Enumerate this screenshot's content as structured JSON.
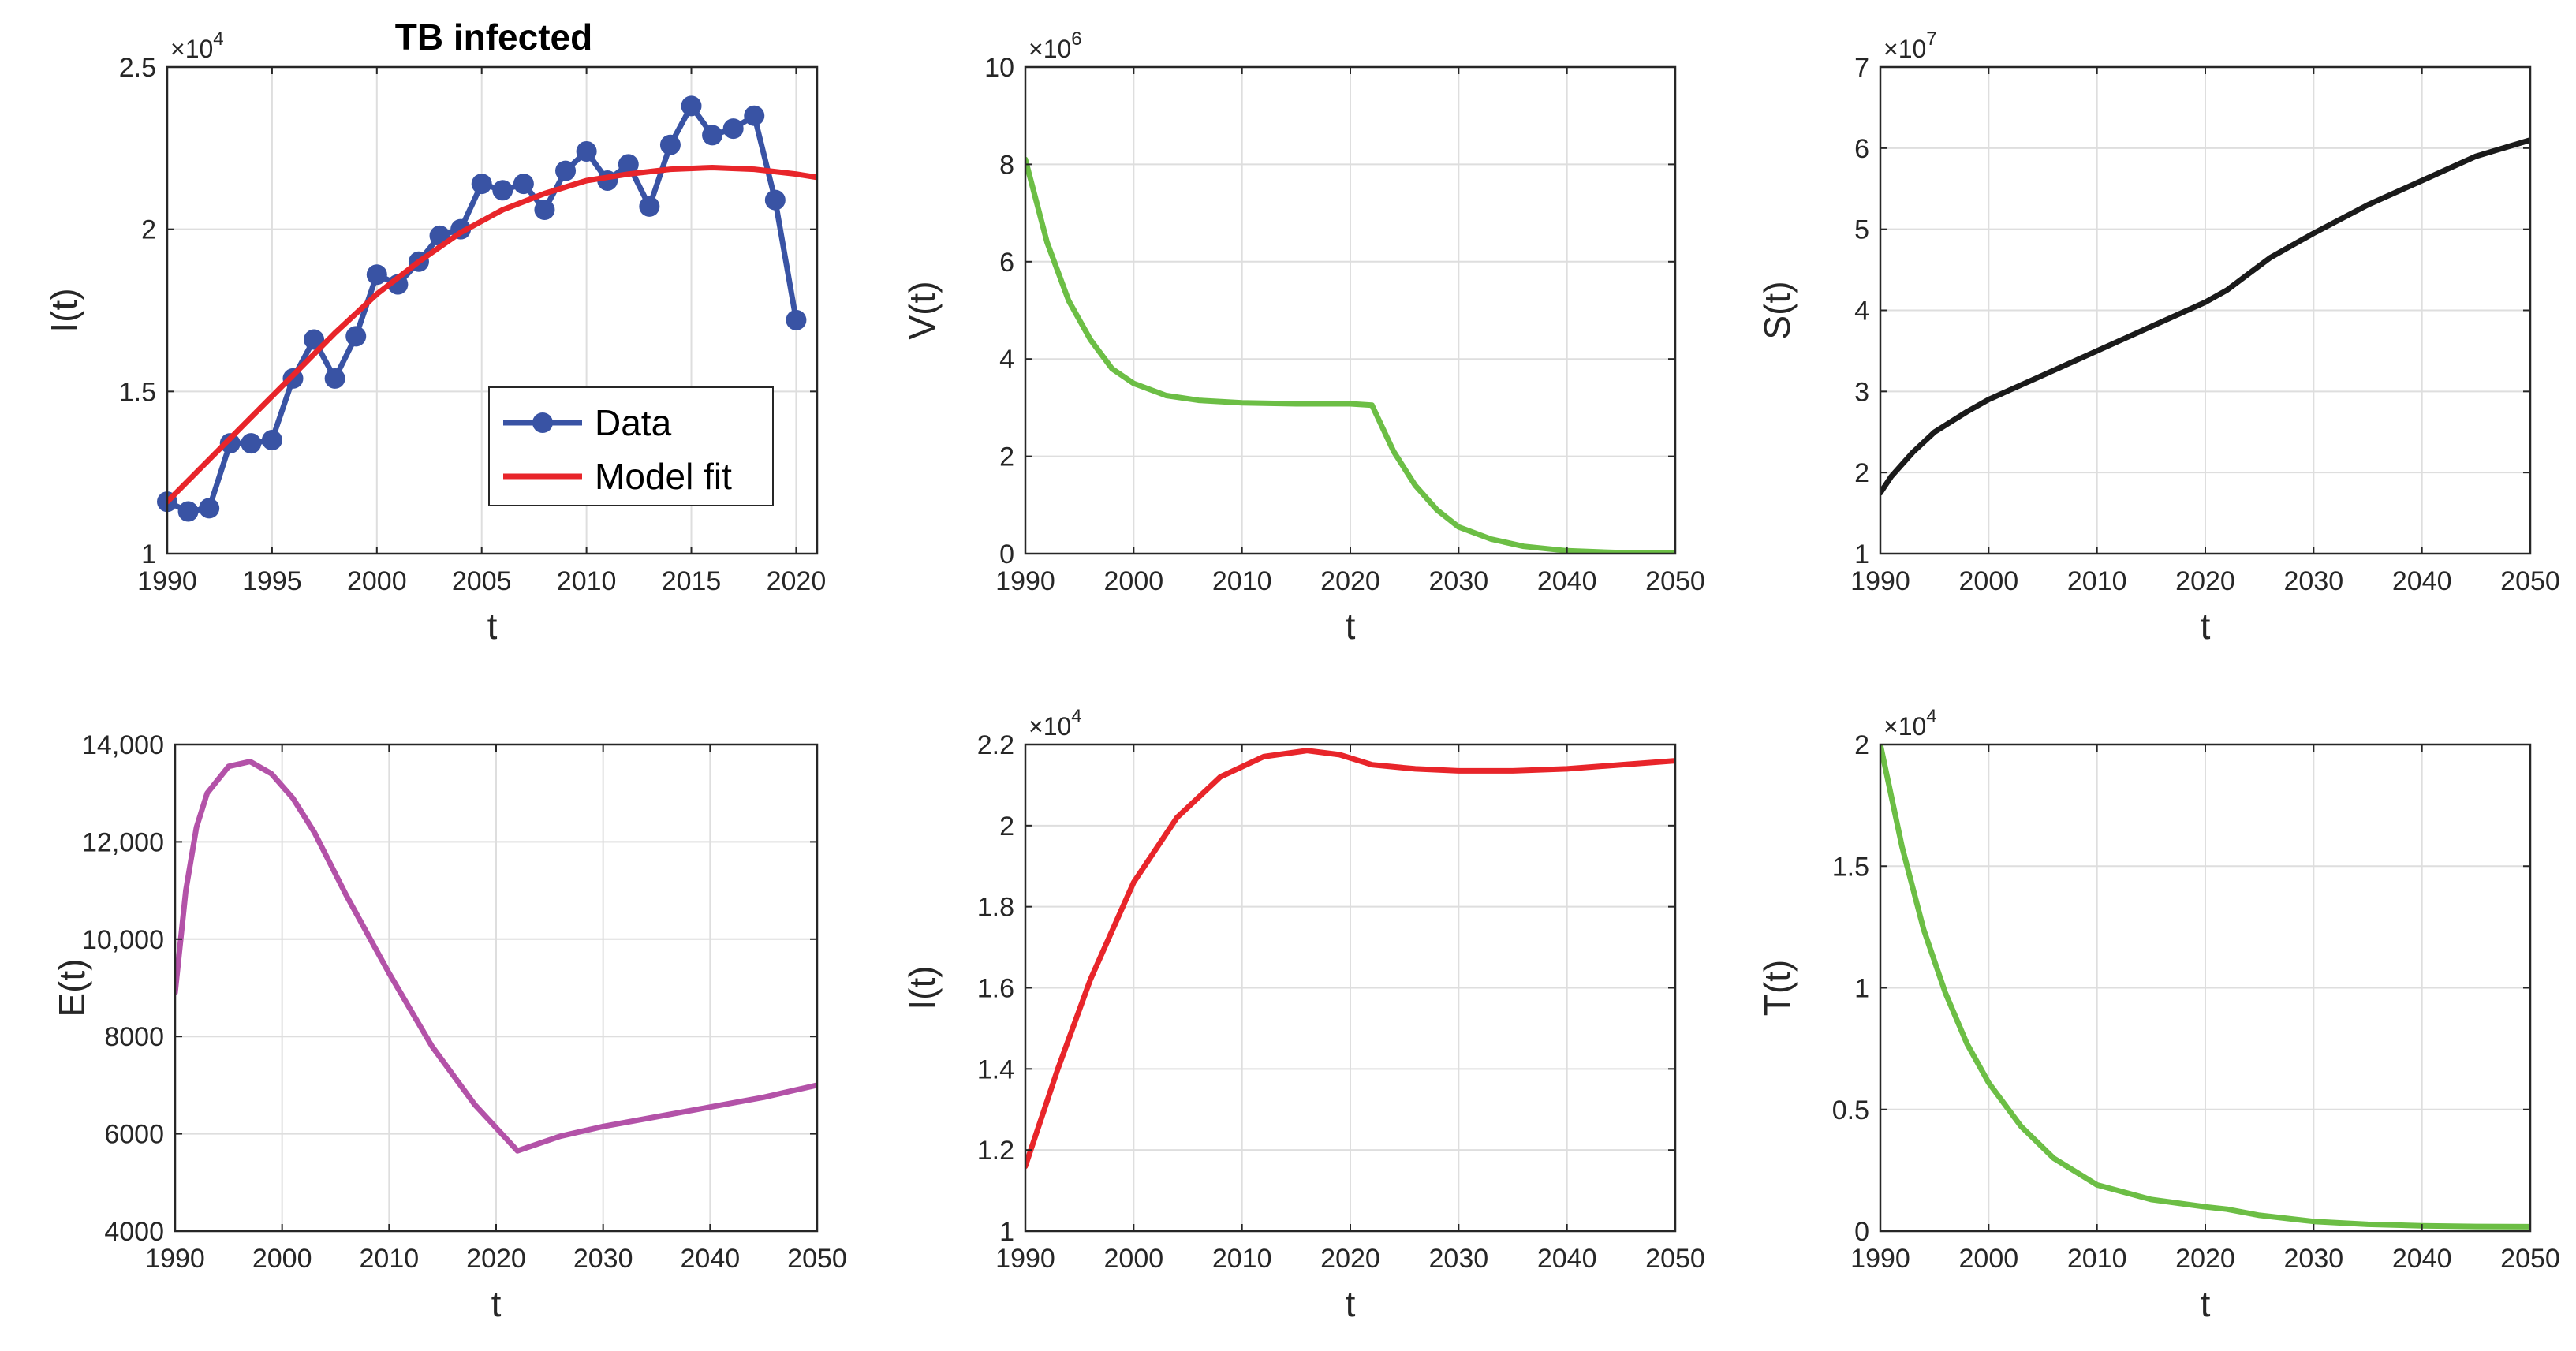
{
  "chart_data": [
    {
      "id": "p1",
      "type": "line",
      "title": "TB infected",
      "xlabel": "t",
      "ylabel": "I(t)",
      "exponent": "4",
      "xlim": [
        1990,
        2021
      ],
      "ylim": [
        1.0,
        2.5
      ],
      "xticks": [
        1990,
        1995,
        2000,
        2005,
        2010,
        2015,
        2020
      ],
      "xtick_labels": [
        "1990",
        "1995",
        "2000",
        "2005",
        "2010",
        "2015",
        "2020"
      ],
      "yticks": [
        1.0,
        1.5,
        2.0,
        2.5
      ],
      "ytick_labels": [
        "1",
        "1.5",
        "2",
        "2.5"
      ],
      "legend_position": "bottom-center",
      "series": [
        {
          "name": "Data",
          "color": "#3953A4",
          "marker": "circle",
          "x": [
            1990,
            1991,
            1992,
            1993,
            1994,
            1995,
            1996,
            1997,
            1998,
            1999,
            2000,
            2001,
            2002,
            2003,
            2004,
            2005,
            2006,
            2007,
            2008,
            2009,
            2010,
            2011,
            2012,
            2013,
            2014,
            2015,
            2016,
            2017,
            2018,
            2019,
            2020
          ],
          "y": [
            1.16,
            1.13,
            1.14,
            1.34,
            1.34,
            1.35,
            1.54,
            1.66,
            1.54,
            1.67,
            1.86,
            1.83,
            1.9,
            1.98,
            2.0,
            2.14,
            2.12,
            2.14,
            2.06,
            2.18,
            2.24,
            2.15,
            2.2,
            2.07,
            2.26,
            2.38,
            2.29,
            2.31,
            2.35,
            2.09,
            1.72
          ]
        },
        {
          "name": "Model fit",
          "color": "#E8252A",
          "x": [
            1990,
            1992,
            1994,
            1996,
            1998,
            2000,
            2002,
            2004,
            2006,
            2008,
            2010,
            2012,
            2014,
            2016,
            2018,
            2020,
            2021
          ],
          "y": [
            1.16,
            1.29,
            1.42,
            1.55,
            1.68,
            1.8,
            1.9,
            1.99,
            2.06,
            2.11,
            2.15,
            2.17,
            2.185,
            2.19,
            2.185,
            2.17,
            2.16
          ]
        }
      ]
    },
    {
      "id": "p2",
      "type": "line",
      "xlabel": "t",
      "ylabel": "V(t)",
      "exponent": "6",
      "xlim": [
        1990,
        2050
      ],
      "ylim": [
        0,
        10
      ],
      "xticks": [
        1990,
        2000,
        2010,
        2020,
        2030,
        2040,
        2050
      ],
      "xtick_labels": [
        "1990",
        "2000",
        "2010",
        "2020",
        "2030",
        "2040",
        "2050"
      ],
      "yticks": [
        0,
        2,
        4,
        6,
        8,
        10
      ],
      "ytick_labels": [
        "0",
        "2",
        "4",
        "6",
        "8",
        "10"
      ],
      "series": [
        {
          "name": "V",
          "color": "#6CBE45",
          "x": [
            1990,
            1992,
            1994,
            1996,
            1998,
            2000,
            2003,
            2006,
            2010,
            2015,
            2020,
            2022,
            2024,
            2026,
            2028,
            2030,
            2033,
            2036,
            2040,
            2045,
            2050
          ],
          "y": [
            8.1,
            6.4,
            5.2,
            4.4,
            3.8,
            3.5,
            3.25,
            3.15,
            3.1,
            3.08,
            3.08,
            3.05,
            2.1,
            1.4,
            0.9,
            0.55,
            0.3,
            0.15,
            0.06,
            0.02,
            0.01
          ]
        }
      ]
    },
    {
      "id": "p3",
      "type": "line",
      "xlabel": "t",
      "ylabel": "S(t)",
      "exponent": "7",
      "xlim": [
        1990,
        2050
      ],
      "ylim": [
        1,
        7
      ],
      "xticks": [
        1990,
        2000,
        2010,
        2020,
        2030,
        2040,
        2050
      ],
      "xtick_labels": [
        "1990",
        "2000",
        "2010",
        "2020",
        "2030",
        "2040",
        "2050"
      ],
      "yticks": [
        1,
        2,
        3,
        4,
        5,
        6,
        7
      ],
      "ytick_labels": [
        "1",
        "2",
        "3",
        "4",
        "5",
        "6",
        "7"
      ],
      "series": [
        {
          "name": "S",
          "color": "#1A1A1A",
          "x": [
            1990,
            1991,
            1993,
            1995,
            1998,
            2000,
            2005,
            2010,
            2015,
            2020,
            2022,
            2024,
            2026,
            2030,
            2035,
            2040,
            2045,
            2050
          ],
          "y": [
            1.75,
            1.95,
            2.25,
            2.5,
            2.75,
            2.9,
            3.2,
            3.5,
            3.8,
            4.1,
            4.25,
            4.45,
            4.65,
            4.95,
            5.3,
            5.6,
            5.9,
            6.1
          ]
        }
      ]
    },
    {
      "id": "p4",
      "type": "line",
      "xlabel": "t",
      "ylabel": "E(t)",
      "xlim": [
        1990,
        2050
      ],
      "ylim": [
        4000,
        14000
      ],
      "xticks": [
        1990,
        2000,
        2010,
        2020,
        2030,
        2040,
        2050
      ],
      "xtick_labels": [
        "1990",
        "2000",
        "2010",
        "2020",
        "2030",
        "2040",
        "2050"
      ],
      "yticks": [
        4000,
        6000,
        8000,
        10000,
        12000,
        14000
      ],
      "ytick_labels": [
        "4000",
        "6000",
        "8000",
        "10,000",
        "12,000",
        "14,000"
      ],
      "series": [
        {
          "name": "E",
          "color": "#B352A8",
          "x": [
            1990,
            1991,
            1992,
            1993,
            1995,
            1997,
            1999,
            2001,
            2003,
            2006,
            2010,
            2014,
            2018,
            2022,
            2026,
            2030,
            2035,
            2040,
            2045,
            2050
          ],
          "y": [
            8900,
            11000,
            12300,
            13000,
            13550,
            13650,
            13400,
            12900,
            12200,
            10900,
            9300,
            7800,
            6600,
            5650,
            5950,
            6150,
            6350,
            6550,
            6750,
            7000
          ]
        }
      ]
    },
    {
      "id": "p5",
      "type": "line",
      "xlabel": "t",
      "ylabel": "I(t)",
      "exponent": "4",
      "xlim": [
        1990,
        2050
      ],
      "ylim": [
        1.0,
        2.2
      ],
      "xticks": [
        1990,
        2000,
        2010,
        2020,
        2030,
        2040,
        2050
      ],
      "xtick_labels": [
        "1990",
        "2000",
        "2010",
        "2020",
        "2030",
        "2040",
        "2050"
      ],
      "yticks": [
        1.0,
        1.2,
        1.4,
        1.6,
        1.8,
        2.0,
        2.2
      ],
      "ytick_labels": [
        "1",
        "1.2",
        "1.4",
        "1.6",
        "1.8",
        "2",
        "2.2"
      ],
      "series": [
        {
          "name": "I",
          "color": "#E8252A",
          "x": [
            1990,
            1993,
            1996,
            2000,
            2004,
            2008,
            2012,
            2016,
            2019,
            2022,
            2026,
            2030,
            2035,
            2040,
            2045,
            2050
          ],
          "y": [
            1.16,
            1.4,
            1.62,
            1.86,
            2.02,
            2.12,
            2.17,
            2.185,
            2.175,
            2.15,
            2.14,
            2.135,
            2.135,
            2.14,
            2.15,
            2.16
          ]
        }
      ]
    },
    {
      "id": "p6",
      "type": "line",
      "xlabel": "t",
      "ylabel": "T(t)",
      "exponent": "4",
      "xlim": [
        1990,
        2050
      ],
      "ylim": [
        0,
        2
      ],
      "xticks": [
        1990,
        2000,
        2010,
        2020,
        2030,
        2040,
        2050
      ],
      "xtick_labels": [
        "1990",
        "2000",
        "2010",
        "2020",
        "2030",
        "2040",
        "2050"
      ],
      "yticks": [
        0,
        0.5,
        1,
        1.5,
        2
      ],
      "ytick_labels": [
        "0",
        "0.5",
        "1",
        "1.5",
        "2"
      ],
      "series": [
        {
          "name": "T",
          "color": "#6CBE45",
          "x": [
            1990,
            1992,
            1994,
            1996,
            1998,
            2000,
            2003,
            2006,
            2010,
            2015,
            2020,
            2022,
            2025,
            2030,
            2035,
            2040,
            2045,
            2050
          ],
          "y": [
            2.0,
            1.58,
            1.24,
            0.98,
            0.77,
            0.61,
            0.43,
            0.3,
            0.19,
            0.13,
            0.1,
            0.09,
            0.065,
            0.04,
            0.028,
            0.022,
            0.019,
            0.018
          ]
        }
      ]
    }
  ]
}
